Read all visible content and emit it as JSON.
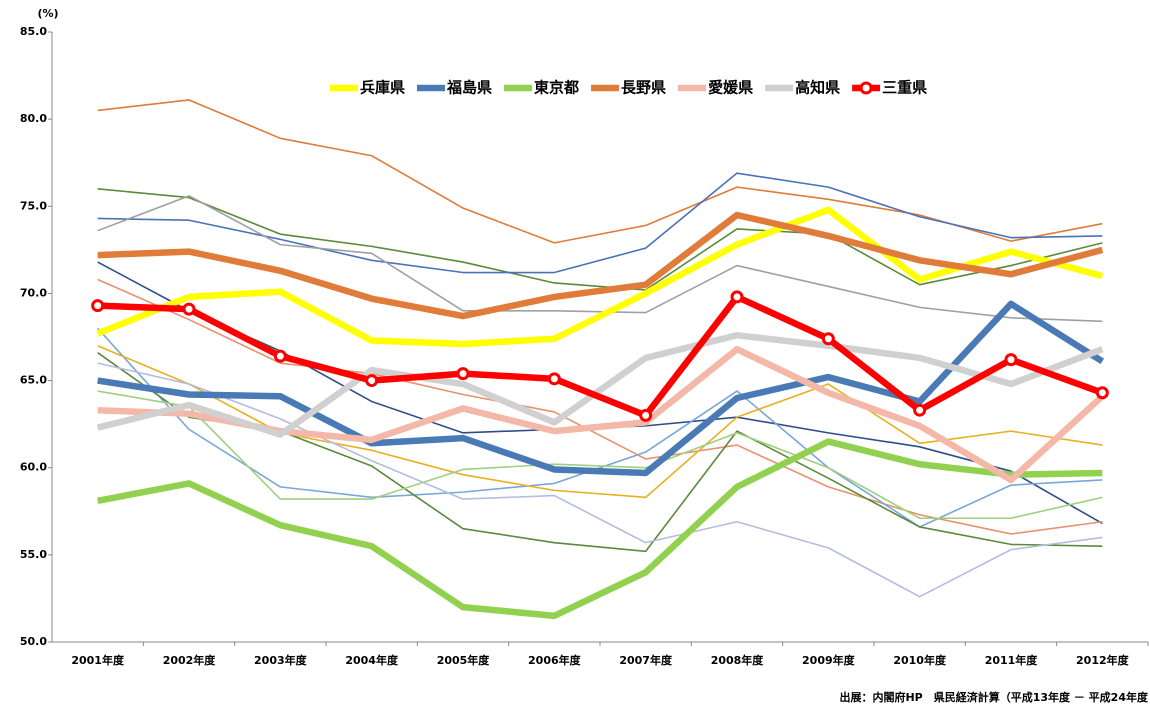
{
  "chart_data": {
    "type": "line",
    "y_unit": "(%)",
    "source": "出展：内閣府HP　県民経済計算（平成13年度 － 平成24年度",
    "categories": [
      "2001年度",
      "2002年度",
      "2003年度",
      "2004年度",
      "2005年度",
      "2006年度",
      "2007年度",
      "2008年度",
      "2009年度",
      "2010年度",
      "2011年度",
      "2012年度"
    ],
    "ylim": [
      50,
      85
    ],
    "yticks": [
      {
        "value": 50,
        "label": "50.0"
      },
      {
        "value": 55,
        "label": "55.0"
      },
      {
        "value": 60,
        "label": "60.0"
      },
      {
        "value": 65,
        "label": "65.0"
      },
      {
        "value": 70,
        "label": "70.0"
      },
      {
        "value": 75,
        "label": "75.0"
      },
      {
        "value": 80,
        "label": "80.0"
      },
      {
        "value": 85,
        "label": "85.0"
      }
    ],
    "grid": false,
    "legend": "top",
    "series": [
      {
        "color": "#e07b39",
        "values": [
          80.5,
          81.1,
          78.9,
          77.9,
          74.9,
          72.9,
          73.9,
          76.1,
          75.4,
          74.5,
          73.0,
          74.0
        ]
      },
      {
        "color": "#5a8a3a",
        "values": [
          76.0,
          75.5,
          73.4,
          72.7,
          71.8,
          70.6,
          70.2,
          73.7,
          73.4,
          70.5,
          71.6,
          72.9
        ]
      },
      {
        "color": "#4a72b8",
        "values": [
          74.3,
          74.2,
          73.1,
          71.9,
          71.2,
          71.2,
          72.6,
          76.9,
          76.1,
          74.4,
          73.2,
          73.3
        ]
      },
      {
        "color": "#a0a0a0",
        "values": [
          73.6,
          75.6,
          72.8,
          72.3,
          69.0,
          69.0,
          68.9,
          71.6,
          70.4,
          69.2,
          68.6,
          68.4
        ]
      },
      {
        "color": "#2e4e8a",
        "values": [
          71.8,
          69.0,
          66.7,
          63.8,
          62.0,
          62.2,
          62.4,
          62.9,
          62.0,
          61.2,
          59.8,
          56.8
        ]
      },
      {
        "color": "#e89070",
        "values": [
          70.8,
          68.5,
          66.0,
          65.4,
          64.2,
          63.2,
          60.5,
          61.3,
          58.9,
          57.3,
          56.2,
          56.9
        ]
      },
      {
        "color": "#7aa6d8",
        "values": [
          68.0,
          62.2,
          58.9,
          58.3,
          58.6,
          59.1,
          60.9,
          64.4,
          60.0,
          56.6,
          59.0,
          59.3
        ]
      },
      {
        "color": "#e8b020",
        "values": [
          67.0,
          64.8,
          62.0,
          61.0,
          59.6,
          58.7,
          58.3,
          62.9,
          64.8,
          61.4,
          62.1,
          61.3
        ]
      },
      {
        "color": "#5a8a3a",
        "values": [
          66.6,
          62.9,
          62.1,
          60.1,
          56.5,
          55.7,
          55.2,
          62.1,
          59.4,
          56.6,
          55.6,
          55.5
        ]
      },
      {
        "color": "#b4bde0",
        "values": [
          66.0,
          64.8,
          62.8,
          60.4,
          58.2,
          58.4,
          55.7,
          56.9,
          55.4,
          52.6,
          55.3,
          56.0
        ]
      },
      {
        "color": "#9fcf7f",
        "values": [
          64.4,
          63.5,
          58.2,
          58.2,
          59.9,
          60.2,
          60.0,
          62.0,
          60.0,
          57.1,
          57.1,
          58.3
        ]
      },
      {
        "name": "兵庫県",
        "color": "#ffff00",
        "values": [
          67.7,
          69.8,
          70.1,
          67.3,
          67.1,
          67.4,
          70.0,
          72.8,
          74.8,
          70.8,
          72.4,
          71.0
        ]
      },
      {
        "name": "福島県",
        "color": "#4a7ab5",
        "values": [
          65.0,
          64.2,
          64.1,
          61.4,
          61.7,
          59.9,
          59.7,
          64.0,
          65.2,
          63.8,
          69.4,
          66.1
        ]
      },
      {
        "name": "東京都",
        "color": "#92d050",
        "values": [
          58.1,
          59.1,
          56.7,
          55.5,
          52.0,
          51.5,
          54.0,
          58.9,
          61.5,
          60.2,
          59.6,
          59.7
        ]
      },
      {
        "name": "長野県",
        "color": "#e07b39",
        "values": [
          72.2,
          72.4,
          71.3,
          69.7,
          68.7,
          69.8,
          70.5,
          74.5,
          73.3,
          71.9,
          71.1,
          72.5
        ]
      },
      {
        "name": "愛媛県",
        "color": "#f4b8a8",
        "values": [
          63.3,
          63.1,
          62.1,
          61.6,
          63.4,
          62.1,
          62.6,
          66.8,
          64.3,
          62.4,
          59.3,
          64.1
        ]
      },
      {
        "name": "高知県",
        "color": "#d0d0d0",
        "values": [
          62.3,
          63.6,
          61.9,
          65.6,
          64.8,
          62.6,
          66.3,
          67.6,
          67.0,
          66.3,
          64.8,
          66.8
        ]
      },
      {
        "name": "三重県",
        "color": "#ff0000",
        "marker": "circle",
        "values": [
          69.3,
          69.1,
          66.4,
          65.0,
          65.4,
          65.1,
          63.0,
          69.8,
          67.4,
          63.3,
          66.2,
          64.3
        ]
      }
    ]
  }
}
